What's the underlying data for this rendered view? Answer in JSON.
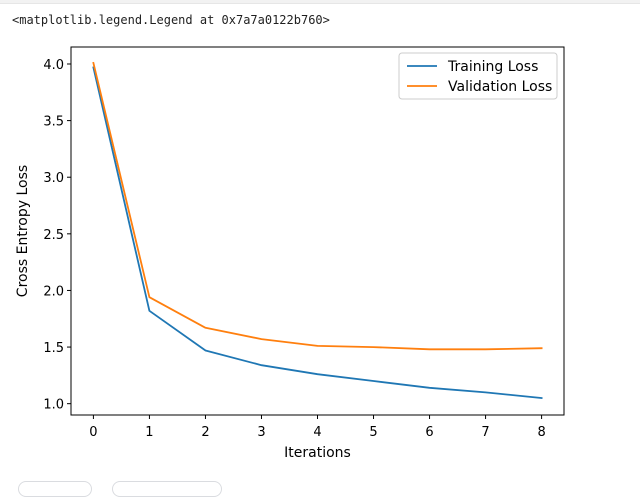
{
  "output": {
    "text": "<matplotlib.legend.Legend at 0x7a7a0122b760>"
  },
  "chart_data": {
    "type": "line",
    "title": "",
    "xlabel": "Iterations",
    "ylabel": "Cross Entropy Loss",
    "x": [
      0,
      1,
      2,
      3,
      4,
      5,
      6,
      7,
      8
    ],
    "xticks": [
      "0",
      "1",
      "2",
      "3",
      "4",
      "5",
      "6",
      "7",
      "8"
    ],
    "yticks": [
      "1.0",
      "1.5",
      "2.0",
      "2.5",
      "3.0",
      "3.5",
      "4.0"
    ],
    "ytick_values": [
      1.0,
      1.5,
      2.0,
      2.5,
      3.0,
      3.5,
      4.0
    ],
    "xlim": [
      -0.4,
      8.4
    ],
    "ylim": [
      0.9,
      4.15
    ],
    "grid": false,
    "legend_position": "top-right",
    "series": [
      {
        "name": "Training Loss",
        "color": "#1f77b4",
        "values": [
          3.97,
          1.82,
          1.47,
          1.34,
          1.26,
          1.2,
          1.14,
          1.1,
          1.05
        ]
      },
      {
        "name": "Validation Loss",
        "color": "#ff7f0e",
        "values": [
          4.01,
          1.94,
          1.67,
          1.57,
          1.51,
          1.5,
          1.48,
          1.48,
          1.49
        ]
      }
    ]
  }
}
